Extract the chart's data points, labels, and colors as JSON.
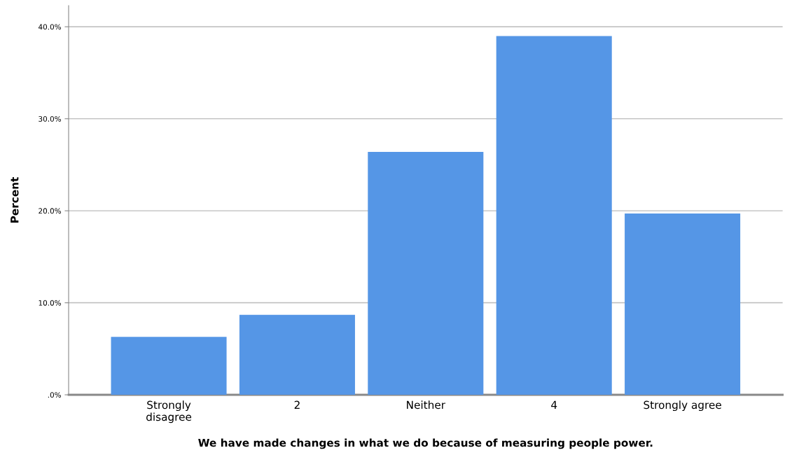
{
  "chart_data": {
    "type": "bar",
    "xlabel": "We have made changes in what we do because of measuring people power.",
    "ylabel": "Percent",
    "categories": [
      "Strongly\ndisagree",
      "2",
      "Neither",
      "4",
      "Strongly agree"
    ],
    "values": [
      6.3,
      8.7,
      26.4,
      39.0,
      19.7
    ],
    "color": "#5596e6",
    "ylim": [
      0,
      42.3
    ],
    "yticks": [
      {
        "value": 0,
        "label": ".0%"
      },
      {
        "value": 10,
        "label": "10.0%"
      },
      {
        "value": 20,
        "label": "20.0%"
      },
      {
        "value": 30,
        "label": "30.0%"
      },
      {
        "value": 40,
        "label": "40.0%"
      }
    ],
    "grid": "y"
  }
}
